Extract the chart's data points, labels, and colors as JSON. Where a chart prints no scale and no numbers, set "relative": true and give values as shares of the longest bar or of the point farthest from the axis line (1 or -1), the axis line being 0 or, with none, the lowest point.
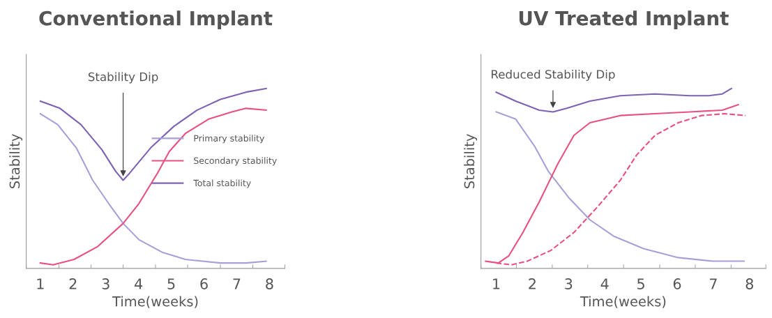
{
  "chart_data": [
    {
      "type": "line",
      "title": "Conventional Implant",
      "xlabel": "Time(weeks)",
      "ylabel": "Stability",
      "relative": true,
      "legend": "right",
      "grid": false,
      "marker": "none",
      "line_style": "solid",
      "xlim": [
        0.57,
        8.47
      ],
      "xticks": [
        {
          "value": 0.57,
          "label": null
        },
        1,
        {
          "value": 1.57,
          "label": null
        },
        2,
        {
          "value": 2.55,
          "label": null
        },
        3,
        {
          "value": 3.53,
          "label": null
        },
        4,
        {
          "value": 4.52,
          "label": null
        },
        5,
        {
          "value": 5.5,
          "label": null
        },
        6,
        {
          "value": 6.5,
          "label": null
        },
        7,
        {
          "value": 7.49,
          "label": null
        },
        8,
        {
          "value": 8.47,
          "label": null
        }
      ],
      "annotations": [
        {
          "text": "Stability Dip",
          "x": 3.53,
          "y": 0.49
        }
      ],
      "series": [
        {
          "name": "Primary stability",
          "color": "#a99fd8",
          "x": [
            1.0,
            1.53,
            2.1,
            2.6,
            3.09,
            3.53,
            4.01,
            4.72,
            5.43,
            6.5,
            7.28,
            7.9
          ],
          "values": [
            0.86,
            0.8,
            0.67,
            0.49,
            0.36,
            0.25,
            0.16,
            0.09,
            0.05,
            0.03,
            0.03,
            0.04
          ]
        },
        {
          "name": "Secondary stability",
          "color": "#e8507f",
          "x": [
            1.0,
            1.39,
            2.03,
            2.74,
            3.53,
            4.01,
            4.58,
            4.94,
            5.43,
            6.14,
            6.85,
            7.28,
            7.9
          ],
          "values": [
            0.03,
            0.02,
            0.05,
            0.12,
            0.25,
            0.36,
            0.53,
            0.65,
            0.75,
            0.83,
            0.87,
            0.89,
            0.88
          ]
        },
        {
          "name": "Total stability",
          "color": "#7d62b3",
          "x": [
            1.0,
            1.6,
            2.24,
            2.88,
            3.3,
            3.53,
            3.73,
            4.37,
            5.08,
            5.79,
            6.5,
            7.28,
            7.9
          ],
          "values": [
            0.93,
            0.89,
            0.8,
            0.66,
            0.54,
            0.49,
            0.53,
            0.67,
            0.79,
            0.88,
            0.94,
            0.98,
            1.0
          ]
        }
      ]
    },
    {
      "type": "line",
      "title": "UV Treated Implant",
      "xlabel": "Time(weeks)",
      "ylabel": "Stability",
      "relative": true,
      "legend": false,
      "grid": false,
      "marker": "none",
      "xlim": [
        0.58,
        8.45
      ],
      "xticks": [
        {
          "value": 0.58,
          "label": null
        },
        1,
        {
          "value": 1.56,
          "label": null
        },
        2,
        {
          "value": 2.55,
          "label": null
        },
        3,
        {
          "value": 3.53,
          "label": null
        },
        4,
        {
          "value": 4.52,
          "label": null
        },
        5,
        {
          "value": 5.52,
          "label": null
        },
        6,
        {
          "value": 6.5,
          "label": null
        },
        7,
        {
          "value": 7.49,
          "label": null
        },
        8,
        {
          "value": 8.45,
          "label": null
        }
      ],
      "annotations": [
        {
          "text": "Reduced Stability Dip",
          "x": 2.57,
          "y": 0.87
        }
      ],
      "series": [
        {
          "color": "#7d62b3",
          "line_style": "solid",
          "x": [
            1.0,
            1.54,
            2.19,
            2.57,
            2.95,
            3.59,
            4.43,
            5.39,
            6.35,
            6.86,
            7.25,
            7.5
          ],
          "values": [
            0.98,
            0.93,
            0.88,
            0.87,
            0.89,
            0.93,
            0.96,
            0.97,
            0.96,
            0.96,
            0.97,
            1.0
          ]
        },
        {
          "color": "#a99fd8",
          "line_style": "solid",
          "x": [
            1.0,
            1.54,
            2.06,
            2.44,
            3.02,
            3.59,
            4.24,
            5.07,
            6.03,
            6.99,
            7.85
          ],
          "values": [
            0.87,
            0.83,
            0.68,
            0.54,
            0.39,
            0.27,
            0.18,
            0.11,
            0.06,
            0.04,
            0.04
          ]
        },
        {
          "color": "#e8507f",
          "line_style": "solid",
          "x": [
            0.71,
            1.06,
            1.35,
            1.74,
            2.19,
            2.7,
            3.15,
            3.59,
            4.43,
            5.39,
            6.35,
            7.25,
            7.69
          ],
          "values": [
            0.04,
            0.03,
            0.07,
            0.2,
            0.37,
            0.58,
            0.74,
            0.81,
            0.85,
            0.86,
            0.87,
            0.88,
            0.91
          ]
        },
        {
          "color": "#e8507f",
          "line_style": "dashed",
          "x": [
            1.0,
            1.42,
            1.86,
            2.51,
            3.15,
            3.79,
            4.43,
            4.88,
            5.39,
            6.03,
            6.67,
            7.31,
            7.89
          ],
          "values": [
            0.03,
            0.02,
            0.04,
            0.1,
            0.2,
            0.34,
            0.49,
            0.63,
            0.74,
            0.81,
            0.85,
            0.86,
            0.85
          ]
        }
      ]
    }
  ]
}
